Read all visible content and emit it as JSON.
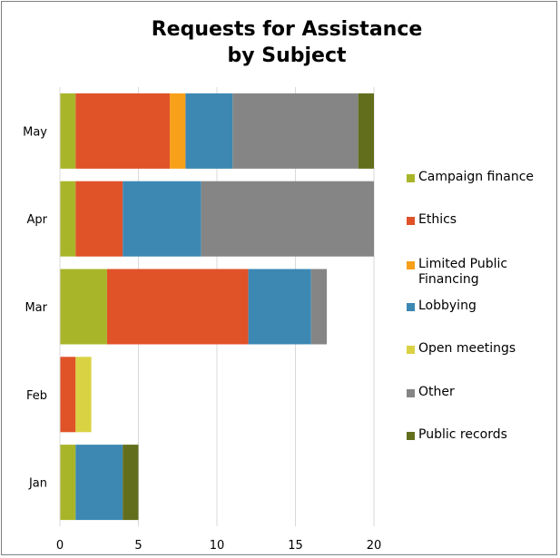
{
  "chart_data": {
    "type": "bar",
    "orientation": "horizontal",
    "stacked": true,
    "title_lines": [
      "Requests for Assistance",
      "by Subject"
    ],
    "categories": [
      "May",
      "Apr",
      "Mar",
      "Feb",
      "Jan"
    ],
    "series": [
      {
        "name": "Campaign finance",
        "color": "#a9b529",
        "values": [
          1,
          1,
          3,
          0,
          1
        ]
      },
      {
        "name": "Ethics",
        "color": "#e05228",
        "values": [
          6,
          3,
          9,
          1,
          0
        ]
      },
      {
        "name": "Limited Public Financing",
        "color": "#f8a01a",
        "values": [
          1,
          0,
          0,
          0,
          0
        ]
      },
      {
        "name": "Lobbying",
        "color": "#3c88b3",
        "values": [
          3,
          5,
          4,
          0,
          3
        ]
      },
      {
        "name": "Open meetings",
        "color": "#d9d243",
        "values": [
          0,
          0,
          0,
          1,
          0
        ]
      },
      {
        "name": "Other",
        "color": "#858585",
        "values": [
          8,
          11,
          1,
          0,
          0
        ]
      },
      {
        "name": "Public records",
        "color": "#636e1d",
        "values": [
          1,
          0,
          0,
          0,
          1
        ]
      }
    ],
    "xlim": [
      0,
      20
    ],
    "xticks": [
      0,
      5,
      10,
      15,
      20
    ],
    "grid": true,
    "legend_position": "right"
  }
}
